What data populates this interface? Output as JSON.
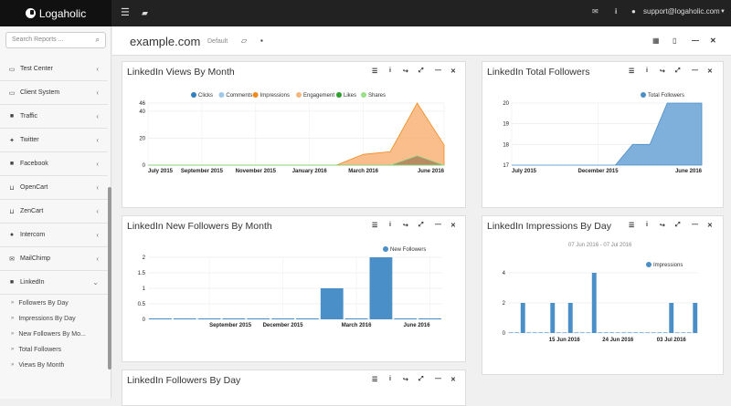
{
  "topbar": {
    "brand": "Logaholic",
    "user": "support@logaholic.com"
  },
  "sidebar": {
    "search_placeholder": "Search Reports ...",
    "items": [
      {
        "label": "Test Center",
        "icon": "monitor-icon"
      },
      {
        "label": "Client System",
        "icon": "desktop-icon"
      },
      {
        "label": "Traffic",
        "icon": "truck-icon"
      },
      {
        "label": "Twitter",
        "icon": "twitter-icon"
      },
      {
        "label": "Facebook",
        "icon": "facebook-icon"
      },
      {
        "label": "OpenCart",
        "icon": "cart-icon"
      },
      {
        "label": "ZenCart",
        "icon": "cart-icon"
      },
      {
        "label": "Intercom",
        "icon": "chat-icon"
      },
      {
        "label": "MailChimp",
        "icon": "envelope-icon"
      },
      {
        "label": "LinkedIn",
        "icon": "linkedin-icon"
      }
    ],
    "sub_items": [
      "Followers By Day",
      "Impressions By Day",
      "New Followers By Mo...",
      "Total Followers",
      "Views By Month"
    ]
  },
  "header": {
    "title": "example.com",
    "subtitle": "Default"
  },
  "panels": {
    "views": {
      "title": "LinkedIn Views By Month"
    },
    "total": {
      "title": "LinkedIn Total Followers"
    },
    "newf": {
      "title": "LinkedIn New Followers By Month"
    },
    "impr": {
      "title": "LinkedIn Impressions By Day",
      "subtitle": "07 Jun 2016 - 07 Jul 2016"
    },
    "fbd": {
      "title": "LinkedIn Followers By Day"
    }
  },
  "chart_data": [
    {
      "type": "area",
      "title": "LinkedIn Views By Month",
      "x": [
        "July 2015",
        "Aug 2015",
        "September 2015",
        "Oct 2015",
        "November 2015",
        "Dec 2015",
        "January 2016",
        "Feb 2016",
        "March 2016",
        "Apr 2016",
        "May 2016",
        "June 2016"
      ],
      "x_tick_labels": [
        "July 2015",
        "September 2015",
        "November 2015",
        "January 2016",
        "March 2016",
        "June 2016"
      ],
      "y_ticks": [
        0,
        20,
        40,
        46
      ],
      "ylim": [
        0,
        46
      ],
      "series": [
        {
          "name": "Clicks",
          "color": "#2f7fc1",
          "values": [
            0,
            0,
            0,
            0,
            0,
            0,
            0,
            0,
            0,
            0,
            0,
            0
          ]
        },
        {
          "name": "Comments",
          "color": "#9ec8ea",
          "values": [
            0,
            0,
            0,
            0,
            0,
            0,
            0,
            0,
            0,
            0,
            0,
            0
          ]
        },
        {
          "name": "Impressions",
          "color": "#f28a1c",
          "values": [
            0,
            0,
            0,
            0,
            0,
            0,
            0,
            0,
            8,
            10,
            46,
            15
          ]
        },
        {
          "name": "Engagement",
          "color": "#f5b77b",
          "values": [
            0,
            0,
            0,
            0,
            0,
            0,
            0,
            0,
            0,
            0,
            0,
            0
          ]
        },
        {
          "name": "Likes",
          "color": "#2ca02c",
          "values": [
            0,
            0,
            0,
            0,
            0,
            0,
            0,
            0,
            0,
            0,
            0,
            0
          ]
        },
        {
          "name": "Shares",
          "color": "#98df8a",
          "values": [
            0,
            0,
            0,
            0,
            0,
            0,
            0,
            0,
            0,
            0,
            7,
            0
          ]
        }
      ],
      "legend": "top"
    },
    {
      "type": "area",
      "title": "LinkedIn Total Followers",
      "x": [
        "July 2015",
        "Aug 2015",
        "Sep 2015",
        "Oct 2015",
        "Nov 2015",
        "December 2015",
        "Jan 2016",
        "Feb 2016",
        "Mar 2016",
        "Apr 2016",
        "May 2016",
        "June 2016"
      ],
      "x_tick_labels": [
        "July 2015",
        "December 2015",
        "June 2016"
      ],
      "y_ticks": [
        17,
        18,
        19,
        20
      ],
      "ylim": [
        17,
        20
      ],
      "series": [
        {
          "name": "Total Followers",
          "color": "#4a8fc7",
          "values": [
            17,
            17,
            17,
            17,
            17,
            17,
            17,
            18,
            18,
            20,
            20,
            20
          ]
        }
      ],
      "legend": "top"
    },
    {
      "type": "bar",
      "title": "LinkedIn New Followers By Month",
      "categories": [
        "Jul 2015",
        "Aug 2015",
        "September 2015",
        "Oct 2015",
        "Nov 2015",
        "December 2015",
        "Jan 2016",
        "Feb 2016",
        "March 2016",
        "Apr 2016",
        "May 2016",
        "June 2016"
      ],
      "x_tick_labels": [
        "September 2015",
        "December 2015",
        "March 2016",
        "June 2016"
      ],
      "y_ticks": [
        0,
        0.5,
        1,
        1.5,
        2
      ],
      "ylim": [
        0,
        2
      ],
      "series": [
        {
          "name": "New Followers",
          "color": "#4a8fc7",
          "values": [
            0,
            0,
            0,
            0,
            0,
            0,
            0,
            1,
            0,
            2,
            0,
            0
          ]
        }
      ],
      "legend": "top-right"
    },
    {
      "type": "bar",
      "title": "LinkedIn Impressions By Day",
      "subtitle": "07 Jun 2016 - 07 Jul 2016",
      "x_tick_labels": [
        "15 Jun 2016",
        "24 Jun 2016",
        "03 Jul 2016"
      ],
      "y_ticks": [
        0,
        2,
        4
      ],
      "ylim": [
        0,
        4
      ],
      "series": [
        {
          "name": "Impressions",
          "color": "#4a8fc7",
          "values": [
            0,
            0,
            2,
            0,
            0,
            0,
            0,
            2,
            0,
            0,
            2,
            0,
            0,
            0,
            4,
            0,
            0,
            0,
            0,
            0,
            0,
            0,
            0,
            0,
            0,
            0,
            0,
            2,
            0,
            0,
            0,
            2
          ]
        }
      ],
      "legend": "top-right"
    }
  ]
}
